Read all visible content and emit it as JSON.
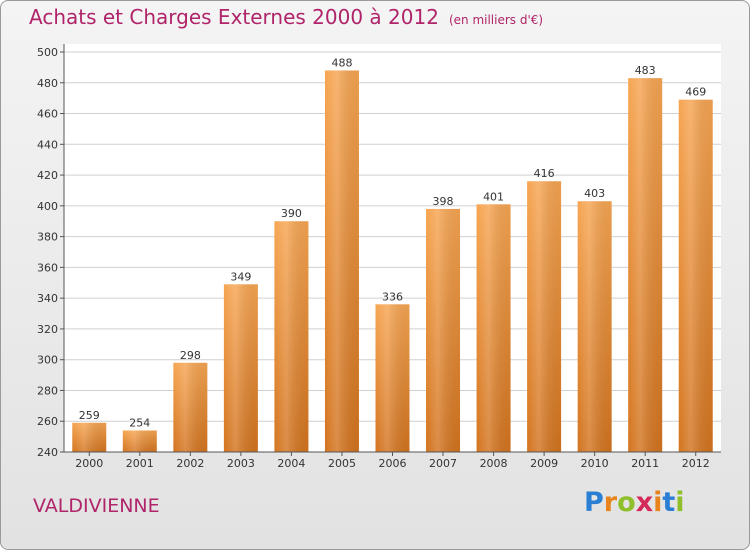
{
  "title": "Achats et Charges Externes 2000 à 2012",
  "unit": "(en milliers d'€)",
  "commune": "VALDIVIENNE",
  "logo": {
    "letters": [
      "P",
      "r",
      "o",
      "x",
      "i",
      "t",
      "i"
    ],
    "colors": [
      "#2a7fd4",
      "#e8841c",
      "#8fbf2a",
      "#d42a5a",
      "#e8841c",
      "#2a7fd4",
      "#8fbf2a"
    ]
  },
  "chart_data": {
    "type": "bar",
    "categories": [
      "2000",
      "2001",
      "2002",
      "2003",
      "2004",
      "2005",
      "2006",
      "2007",
      "2008",
      "2009",
      "2010",
      "2011",
      "2012"
    ],
    "values": [
      259,
      254,
      298,
      349,
      390,
      488,
      336,
      398,
      401,
      416,
      403,
      483,
      469
    ],
    "ylim": [
      240,
      500
    ],
    "yticks": [
      240,
      260,
      280,
      300,
      320,
      340,
      360,
      380,
      400,
      420,
      440,
      460,
      480,
      500
    ],
    "grid": true,
    "bar_color_top": "#f6a552",
    "bar_color_bottom": "#d3741f"
  }
}
